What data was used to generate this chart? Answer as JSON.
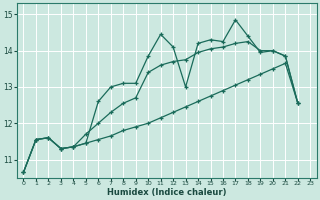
{
  "title": "",
  "xlabel": "Humidex (Indice chaleur)",
  "bg_color": "#cce8e0",
  "line_color": "#1a6b5a",
  "grid_color": "#b0d8d0",
  "xlim": [
    -0.5,
    23.5
  ],
  "ylim": [
    10.5,
    15.3
  ],
  "yticks": [
    11,
    12,
    13,
    14,
    15
  ],
  "xticks": [
    0,
    1,
    2,
    3,
    4,
    5,
    6,
    7,
    8,
    9,
    10,
    11,
    12,
    13,
    14,
    15,
    16,
    17,
    18,
    19,
    20,
    21,
    22,
    23
  ],
  "curve1_x": [
    0,
    1,
    2,
    3,
    4,
    5,
    6,
    7,
    8,
    9,
    10,
    11,
    12,
    13,
    14,
    15,
    16,
    17,
    18,
    19,
    20,
    21,
    22
  ],
  "curve1_y": [
    10.65,
    11.55,
    11.6,
    11.3,
    11.35,
    11.45,
    12.6,
    13.0,
    13.1,
    13.1,
    13.85,
    14.45,
    14.1,
    13.0,
    14.2,
    14.3,
    14.25,
    14.85,
    14.4,
    13.95,
    14.0,
    13.85,
    12.55
  ],
  "curve2_x": [
    0,
    1,
    2,
    3,
    4,
    5,
    6,
    7,
    8,
    9,
    10,
    11,
    12,
    13,
    14,
    15,
    16,
    17,
    18,
    19,
    20,
    21,
    22
  ],
  "curve2_y": [
    10.65,
    11.55,
    11.6,
    11.3,
    11.35,
    11.7,
    12.0,
    12.3,
    12.55,
    12.7,
    13.4,
    13.6,
    13.7,
    13.75,
    13.95,
    14.05,
    14.1,
    14.2,
    14.25,
    14.0,
    14.0,
    13.85,
    12.55
  ],
  "curve3_x": [
    0,
    1,
    2,
    3,
    4,
    5,
    6,
    7,
    8,
    9,
    10,
    11,
    12,
    13,
    14,
    15,
    16,
    17,
    18,
    19,
    20,
    21,
    22
  ],
  "curve3_y": [
    10.65,
    11.55,
    11.6,
    11.3,
    11.35,
    11.45,
    11.55,
    11.65,
    11.8,
    11.9,
    12.0,
    12.15,
    12.3,
    12.45,
    12.6,
    12.75,
    12.9,
    13.05,
    13.2,
    13.35,
    13.5,
    13.65,
    12.55
  ]
}
